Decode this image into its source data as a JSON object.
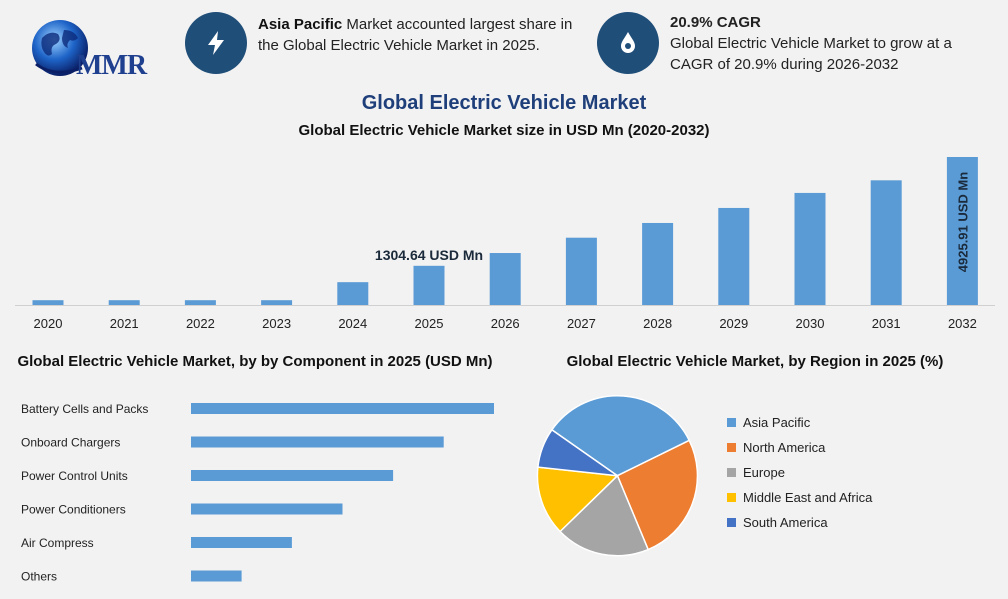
{
  "logo": {
    "text": "MMR"
  },
  "info": {
    "left_bold": "Asia Pacific",
    "left_text": " Market accounted largest share in the Global Electric Vehicle Market in 2025.",
    "right_title": "20.9% CAGR",
    "right_text": "Global Electric Vehicle Market to grow at a CAGR of 20.9% during 2026-2032"
  },
  "title": "Global Electric Vehicle Market",
  "chart_data": [
    {
      "type": "bar",
      "title": "Global Electric Vehicle Market size in USD Mn (2020-2032)",
      "categories": [
        "2020",
        "2021",
        "2022",
        "2023",
        "2024",
        "2025",
        "2026",
        "2027",
        "2028",
        "2029",
        "2030",
        "2031",
        "2032"
      ],
      "values": [
        160,
        160,
        160,
        160,
        760,
        1304.64,
        1730,
        2240,
        2730,
        3230,
        3730,
        4150,
        4925.91
      ],
      "color": "#5b9bd5",
      "annotations": [
        {
          "category": "2025",
          "text": "1304.64 USD Mn"
        },
        {
          "category": "2032",
          "text": "4925.91 USD Mn"
        }
      ]
    },
    {
      "type": "bar",
      "orientation": "horizontal",
      "title": "Global Electric Vehicle Market, by by Component in 2025 (USD Mn)",
      "categories": [
        "Battery Cells and Packs",
        "Onboard Chargers",
        "Power Control Units",
        "Power Conditioners",
        "Air Compress",
        "Others"
      ],
      "values": [
        100,
        83.4,
        66.7,
        50,
        33.3,
        16.7
      ],
      "color": "#5b9bd5"
    },
    {
      "type": "pie",
      "title": "Global Electric Vehicle Market, by Region in 2025 (%)",
      "labels": [
        "Asia Pacific",
        "North America",
        "Europe",
        "Middle East and Africa",
        "South America"
      ],
      "values": [
        33,
        26,
        19,
        14,
        8
      ],
      "colors": [
        "#5b9bd5",
        "#ed7d31",
        "#a5a5a5",
        "#ffc000",
        "#4472c4"
      ]
    }
  ]
}
